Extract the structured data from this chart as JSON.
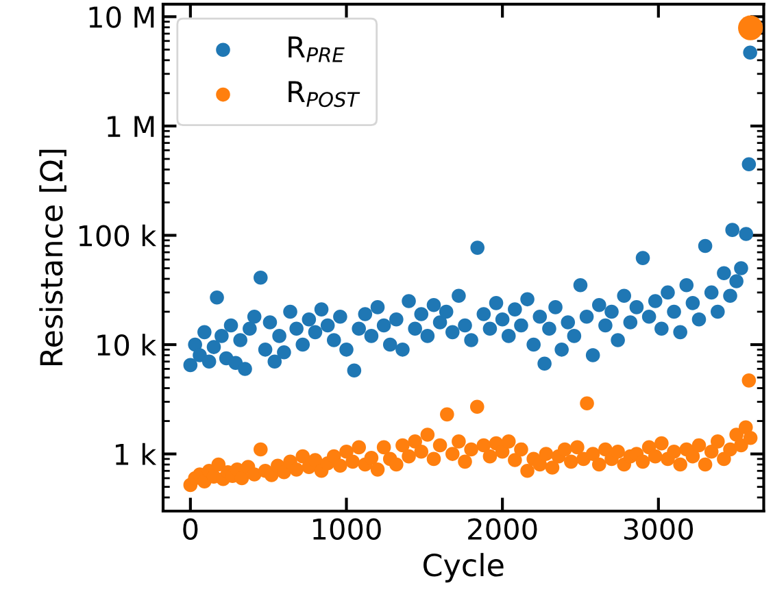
{
  "chart_data": {
    "type": "scatter",
    "xlabel": "Cycle",
    "ylabel": "Resistance [Ω]",
    "log": "y",
    "marker": "circle",
    "legend": "top left",
    "grid": false,
    "xlim": [
      -175,
      3675
    ],
    "xticks": [
      0,
      1000,
      2000,
      3000
    ],
    "ylim": [
      300,
      13000000
    ],
    "yticks": [
      {
        "value": 1000,
        "label": "1 k"
      },
      {
        "value": 10000,
        "label": "10 k"
      },
      {
        "value": 100000,
        "label": "100 k"
      },
      {
        "value": 1000000,
        "label": "1 M"
      },
      {
        "value": 10000000,
        "label": "10 M"
      }
    ],
    "series": [
      {
        "name": "R$_{PRE}$",
        "color": "#1f77b4",
        "x": [
          0,
          30,
          60,
          90,
          120,
          150,
          170,
          200,
          230,
          260,
          290,
          320,
          350,
          380,
          410,
          450,
          480,
          510,
          540,
          570,
          600,
          640,
          680,
          720,
          760,
          800,
          840,
          880,
          920,
          960,
          1000,
          1050,
          1080,
          1120,
          1160,
          1200,
          1240,
          1280,
          1320,
          1360,
          1400,
          1440,
          1480,
          1520,
          1560,
          1600,
          1640,
          1680,
          1720,
          1760,
          1800,
          1840,
          1880,
          1920,
          1960,
          2000,
          2040,
          2080,
          2120,
          2160,
          2200,
          2240,
          2270,
          2300,
          2340,
          2380,
          2420,
          2460,
          2500,
          2540,
          2580,
          2620,
          2660,
          2700,
          2740,
          2780,
          2820,
          2860,
          2900,
          2940,
          2980,
          3020,
          3060,
          3100,
          3140,
          3180,
          3220,
          3260,
          3300,
          3340,
          3380,
          3420,
          3460,
          3474,
          3500,
          3530,
          3562,
          3580,
          3588
        ],
        "values": [
          6500,
          10000,
          8000,
          13000,
          7000,
          9500,
          27000,
          12000,
          7500,
          15000,
          6800,
          11000,
          6000,
          14000,
          18000,
          41000,
          9000,
          16000,
          7000,
          12000,
          8500,
          20000,
          14000,
          10000,
          17000,
          13000,
          21000,
          15000,
          11000,
          18000,
          9000,
          5800,
          14000,
          19000,
          12000,
          22000,
          15000,
          10000,
          17000,
          9000,
          25000,
          14000,
          19000,
          12000,
          23000,
          16000,
          20000,
          13000,
          28000,
          15000,
          11000,
          77000,
          19000,
          14000,
          24000,
          17000,
          12000,
          21000,
          15000,
          26000,
          10000,
          18000,
          6700,
          14000,
          22000,
          9000,
          16000,
          12000,
          35000,
          18000,
          8000,
          23000,
          15000,
          20000,
          11000,
          28000,
          16000,
          22000,
          62000,
          18000,
          25000,
          14000,
          30000,
          20000,
          13000,
          35000,
          24000,
          17000,
          80000,
          30000,
          20000,
          45000,
          28000,
          112000,
          38000,
          50000,
          103000,
          447000,
          4700000
        ]
      },
      {
        "name": "R$_{POST}$",
        "color": "#ff7f0e",
        "x": [
          0,
          30,
          60,
          90,
          120,
          150,
          180,
          210,
          240,
          270,
          300,
          330,
          370,
          410,
          450,
          480,
          520,
          560,
          600,
          640,
          680,
          720,
          760,
          800,
          840,
          880,
          920,
          960,
          1000,
          1040,
          1080,
          1120,
          1160,
          1200,
          1240,
          1280,
          1320,
          1360,
          1400,
          1440,
          1480,
          1520,
          1560,
          1600,
          1645,
          1680,
          1720,
          1760,
          1800,
          1838,
          1880,
          1920,
          1960,
          2000,
          2040,
          2080,
          2120,
          2160,
          2200,
          2240,
          2280,
          2320,
          2360,
          2400,
          2440,
          2480,
          2520,
          2542,
          2580,
          2620,
          2660,
          2700,
          2740,
          2780,
          2820,
          2860,
          2900,
          2940,
          2980,
          3020,
          3060,
          3100,
          3140,
          3180,
          3220,
          3260,
          3300,
          3340,
          3380,
          3420,
          3460,
          3500,
          3530,
          3560,
          3580,
          3590
        ],
        "values": [
          520,
          600,
          650,
          560,
          700,
          620,
          800,
          590,
          680,
          630,
          720,
          600,
          760,
          650,
          1100,
          700,
          640,
          780,
          680,
          850,
          720,
          950,
          760,
          880,
          700,
          820,
          950,
          780,
          1050,
          850,
          1150,
          800,
          920,
          720,
          1150,
          900,
          800,
          1200,
          950,
          1300,
          1050,
          1500,
          900,
          1200,
          2300,
          1000,
          1300,
          850,
          1100,
          2700,
          1200,
          950,
          1250,
          1050,
          1300,
          880,
          1100,
          700,
          900,
          800,
          1000,
          750,
          950,
          1100,
          850,
          1150,
          900,
          2900,
          1000,
          800,
          1100,
          900,
          1050,
          800,
          950,
          1000,
          850,
          1150,
          950,
          1250,
          900,
          1050,
          800,
          1100,
          950,
          1200,
          800,
          1050,
          1300,
          900,
          1100,
          1500,
          1200,
          1750,
          4700,
          1400
        ]
      },
      {
        "type": "bubble",
        "color": "#ff7f0e",
        "x": [
          3590
        ],
        "values": [
          7900000
        ],
        "sizes": [
          1
        ]
      }
    ]
  }
}
